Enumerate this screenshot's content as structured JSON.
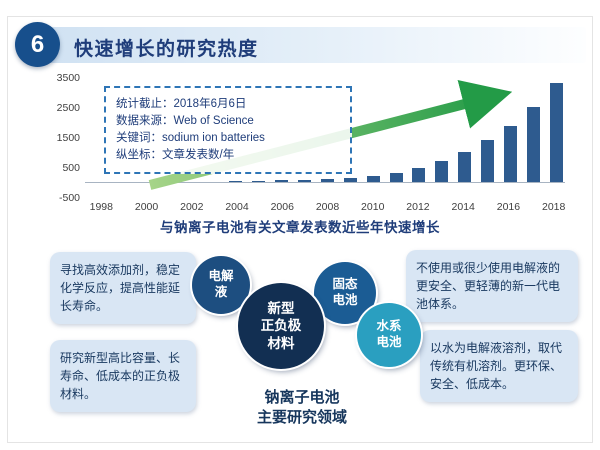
{
  "slide": {
    "number": "6",
    "title": "快速增长的研究热度"
  },
  "chart_data": {
    "type": "bar",
    "x": [
      1998,
      1999,
      2000,
      2001,
      2002,
      2003,
      2004,
      2005,
      2006,
      2007,
      2008,
      2009,
      2010,
      2011,
      2012,
      2013,
      2014,
      2015,
      2016,
      2017,
      2018
    ],
    "values": [
      20,
      25,
      30,
      35,
      40,
      50,
      60,
      75,
      90,
      110,
      140,
      180,
      250,
      350,
      500,
      750,
      1050,
      1450,
      1900,
      2550,
      3350
    ],
    "x_tick_labels": [
      "1998",
      "2000",
      "2002",
      "2004",
      "2006",
      "2008",
      "2010",
      "2012",
      "2014",
      "2016",
      "2018"
    ],
    "y_ticks": [
      3500,
      2500,
      1500,
      500,
      -500
    ],
    "ylim": [
      -500,
      3500
    ],
    "title": "",
    "xlabel": "",
    "ylabel": "文章发表数/年",
    "grid": false,
    "legend": "none",
    "bar_color": "#2e5b8f",
    "trend_arrow": {
      "direction": "up-right",
      "colors": [
        "#a6d488",
        "#239b47"
      ]
    },
    "annotation_box": {
      "lines": [
        "统计截止：2018年6月6日",
        "数据来源：Web of Science",
        "关键词：sodium ion batteries",
        "纵坐标：文章发表数/年"
      ]
    },
    "caption": "与钠离子电池有关文章发表数近些年快速增长"
  },
  "callouts": {
    "left_top": "寻找高效添加剂，稳定化学反应，提高性能延长寿命。",
    "left_bottom": "研究新型高比容量、长寿命、低成本的正负极材料。",
    "right_top": "不使用或很少使用电解液的更安全、更轻薄的新一代电池体系。",
    "right_bottom": "以水为电解液溶剂，取代传统有机溶剂。更环保、安全、低成本。"
  },
  "bubbles": [
    {
      "id": "electrolyte",
      "label": "电解\n液",
      "color": "#1d4e80"
    },
    {
      "id": "electrode",
      "label": "新型\n正负极\n材料",
      "color": "#122f52"
    },
    {
      "id": "solid-state",
      "label": "固态\n电池",
      "color": "#1b5c94"
    },
    {
      "id": "aqueous",
      "label": "水系\n电池",
      "color": "#2a9fc0"
    }
  ],
  "footer": {
    "line1": "钠离子电池",
    "line2": "主要研究领域"
  },
  "colors": {
    "header_accent": "#174f8c",
    "title_text": "#1f3d7a",
    "callout_bg": "#d9e6f4",
    "callout_text": "#17375e"
  }
}
